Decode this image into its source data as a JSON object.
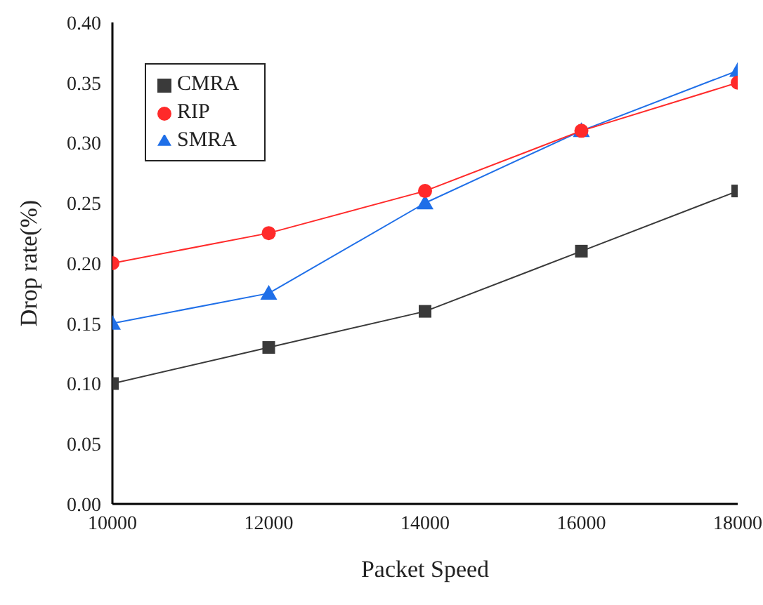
{
  "chart_data": {
    "type": "line",
    "xlabel": "Packet Speed",
    "ylabel": "Drop rate(%)",
    "x": [
      10000,
      12000,
      14000,
      16000,
      18000
    ],
    "xlim": [
      10000,
      18000
    ],
    "xticks": [
      10000,
      12000,
      14000,
      16000,
      18000
    ],
    "ylim": [
      0,
      0.4
    ],
    "yticks": [
      {
        "value": 0,
        "label": "0.00"
      },
      {
        "value": 0.05,
        "label": "0.05"
      },
      {
        "value": 0.1,
        "label": "0.10"
      },
      {
        "value": 0.15,
        "label": "0.15"
      },
      {
        "value": 0.2,
        "label": "0.20"
      },
      {
        "value": 0.25,
        "label": "0.25"
      },
      {
        "value": 0.3,
        "label": "0.30"
      },
      {
        "value": 0.35,
        "label": "0.35"
      },
      {
        "value": 0.4,
        "label": "0.40"
      }
    ],
    "grid": false,
    "legend": "top left",
    "line_style": "solid",
    "series": [
      {
        "name": "CMRA",
        "color": "#3a3a3a",
        "marker": "square",
        "values": [
          0.1,
          0.13,
          0.16,
          0.21,
          0.26
        ]
      },
      {
        "name": "RIP",
        "color": "#ff2a2a",
        "marker": "circle",
        "values": [
          0.2,
          0.225,
          0.26,
          0.31,
          0.35
        ]
      },
      {
        "name": "SMRA",
        "color": "#1f6fe8",
        "marker": "triangle",
        "values": [
          0.15,
          0.175,
          0.25,
          0.31,
          0.36
        ]
      }
    ]
  }
}
